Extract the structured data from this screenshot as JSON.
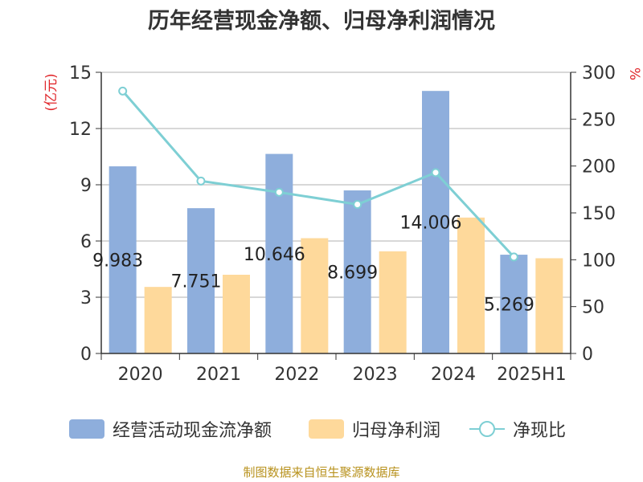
{
  "chart_data": {
    "type": "bar",
    "title": "历年经营现金净额、归母净利润情况",
    "categories": [
      "2020",
      "2021",
      "2022",
      "2023",
      "2024",
      "2025H1"
    ],
    "y_left": {
      "label": "(亿元)",
      "ylim": [
        0,
        15
      ],
      "ticks": [
        "0",
        "3",
        "6",
        "9",
        "12",
        "15"
      ]
    },
    "y_right": {
      "label": "%",
      "ylim": [
        0,
        300
      ],
      "ticks": [
        "0",
        "50",
        "100",
        "150",
        "200",
        "250",
        "300"
      ]
    },
    "series": [
      {
        "name": "经营活动现金流净额",
        "type": "bar",
        "axis": "left",
        "color": "#8eaedc",
        "values": [
          9.983,
          7.751,
          10.646,
          8.699,
          14.006,
          5.269
        ],
        "data_labels": [
          "9.983",
          "7.751",
          "10.646",
          "8.699",
          "14.006",
          "5.269"
        ]
      },
      {
        "name": "归母净利润",
        "type": "bar",
        "axis": "left",
        "color": "#fed99b",
        "values": [
          3.55,
          4.2,
          6.15,
          5.45,
          7.25,
          5.08
        ]
      },
      {
        "name": "净现比",
        "type": "line",
        "axis": "right",
        "color": "#7ecfd4",
        "values": [
          280,
          184,
          172,
          159,
          193,
          103
        ]
      }
    ],
    "grid": true,
    "legend_position": "bottom",
    "source": "制图数据来自恒生聚源数据库"
  }
}
